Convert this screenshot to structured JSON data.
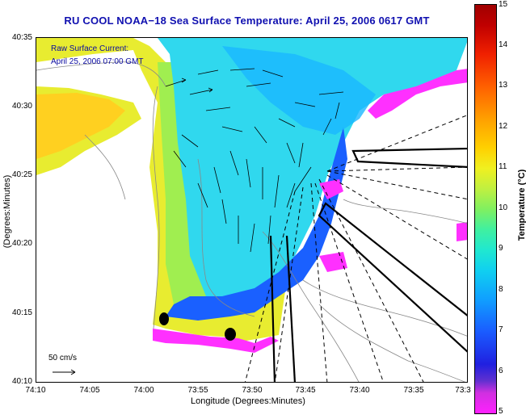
{
  "title": "RU COOL  NOAA−18  Sea Surface Temperature:  April 25, 2006 0617 GMT",
  "overlay": {
    "current_label": "Raw Surface Current:",
    "current_time": "April 25, 2006 07:00 GMT"
  },
  "axes": {
    "xlabel": "Longitude (Degrees:Minutes)",
    "ylabel": "Latitude (Degrees:Minutes)",
    "xticks": [
      "74:10",
      "74:05",
      "74:00",
      "73:55",
      "73:50",
      "73:45",
      "73:40",
      "73:35",
      "73:3"
    ],
    "yticks": [
      "40:35",
      "40:30",
      "40:25",
      "40:20",
      "40:15",
      "40:10"
    ]
  },
  "scale_bar": {
    "label": "50 cm/s"
  },
  "colorbar": {
    "label": "Temperature (°C)",
    "ticks": [
      "15",
      "14",
      "13",
      "12",
      "11",
      "10",
      "9",
      "8",
      "7",
      "6",
      "5"
    ],
    "range": [
      5,
      15
    ],
    "colors": [
      "#ff20ff",
      "#2020e0",
      "#10a0ff",
      "#20e8d0",
      "#c0f040",
      "#ffd000",
      "#ff6000",
      "#a00000"
    ]
  }
}
